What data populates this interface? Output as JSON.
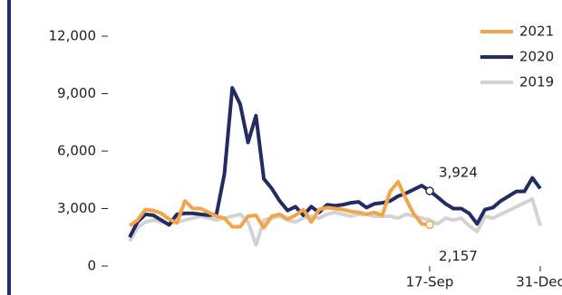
{
  "chart_data": {
    "type": "line",
    "categories": [
      null,
      null,
      null,
      null,
      null,
      null,
      null,
      null,
      null,
      null,
      null,
      null,
      null,
      null,
      null,
      null,
      null,
      null,
      null,
      null,
      null,
      null,
      null,
      null,
      null,
      null,
      null,
      null,
      null,
      null,
      null,
      null,
      null,
      null,
      null,
      null,
      null,
      null,
      "17-Sep",
      null,
      null,
      null,
      null,
      null,
      null,
      null,
      null,
      null,
      null,
      null,
      null,
      null,
      "31-Dec"
    ],
    "series": [
      {
        "name": "2021",
        "color": "#f4a44a",
        "values": [
          2100,
          2400,
          2950,
          2900,
          2750,
          2450,
          2250,
          3400,
          3000,
          3000,
          2800,
          2600,
          2500,
          2050,
          2050,
          2600,
          2650,
          2000,
          2600,
          2700,
          2450,
          2650,
          2950,
          2300,
          2950,
          3050,
          3000,
          2950,
          2850,
          2800,
          2700,
          2800,
          2650,
          3900,
          4400,
          3500,
          2700,
          2200,
          2157,
          null,
          null,
          null,
          null,
          null,
          null,
          null,
          null,
          null,
          null,
          null,
          null,
          null,
          null
        ],
        "value_labels": [
          null,
          null,
          null,
          null,
          null,
          null,
          null,
          null,
          null,
          null,
          null,
          null,
          null,
          null,
          null,
          null,
          null,
          null,
          null,
          null,
          null,
          null,
          null,
          null,
          null,
          null,
          null,
          null,
          null,
          null,
          null,
          null,
          null,
          null,
          null,
          null,
          null,
          null,
          "2,157",
          null,
          null,
          null,
          null,
          null,
          null,
          null,
          null,
          null,
          null,
          null,
          null,
          null,
          null
        ]
      },
      {
        "name": "2020",
        "color": "#232b63",
        "values": [
          1500,
          2300,
          2700,
          2650,
          2400,
          2150,
          2700,
          2750,
          2750,
          2700,
          2650,
          2700,
          4800,
          9300,
          8450,
          6450,
          7850,
          4550,
          4050,
          3400,
          2900,
          3100,
          2650,
          3100,
          2800,
          3200,
          3150,
          3200,
          3300,
          3350,
          3050,
          3250,
          3300,
          3400,
          3650,
          3800,
          4000,
          4200,
          3924,
          3600,
          3250,
          3000,
          3000,
          2750,
          2200,
          2950,
          3050,
          3400,
          3650,
          3900,
          3900,
          4600,
          4050
        ],
        "value_labels": [
          null,
          null,
          null,
          null,
          null,
          null,
          null,
          null,
          null,
          null,
          null,
          null,
          null,
          null,
          null,
          null,
          null,
          null,
          null,
          null,
          null,
          null,
          null,
          null,
          null,
          null,
          null,
          null,
          null,
          null,
          null,
          null,
          null,
          null,
          null,
          null,
          null,
          null,
          "3,924",
          null,
          null,
          null,
          null,
          null,
          null,
          null,
          null,
          null,
          null,
          null,
          null,
          null,
          null
        ]
      },
      {
        "name": "2019",
        "color": "#d3d3d3",
        "values": [
          1300,
          2000,
          2300,
          2400,
          2300,
          2200,
          2300,
          2400,
          2500,
          2600,
          2500,
          2400,
          2500,
          2600,
          2700,
          2300,
          1100,
          2400,
          2500,
          2600,
          2400,
          2300,
          2500,
          2600,
          2500,
          2700,
          2800,
          2700,
          2600,
          2700,
          2700,
          2600,
          2600,
          2600,
          2500,
          2700,
          2600,
          2500,
          2400,
          2200,
          2500,
          2400,
          2500,
          2100,
          1800,
          2600,
          2500,
          2700,
          2900,
          3100,
          3300,
          3500,
          2100
        ]
      }
    ],
    "ylim": [
      0,
      12000
    ],
    "yticks": [
      0,
      {
        "value": 3000,
        "label": "3,000"
      },
      {
        "value": 6000,
        "label": "6,000"
      },
      {
        "value": 9000,
        "label": "9,000"
      },
      {
        "value": 12000,
        "label": "12,000"
      }
    ],
    "legend": "top-right"
  }
}
